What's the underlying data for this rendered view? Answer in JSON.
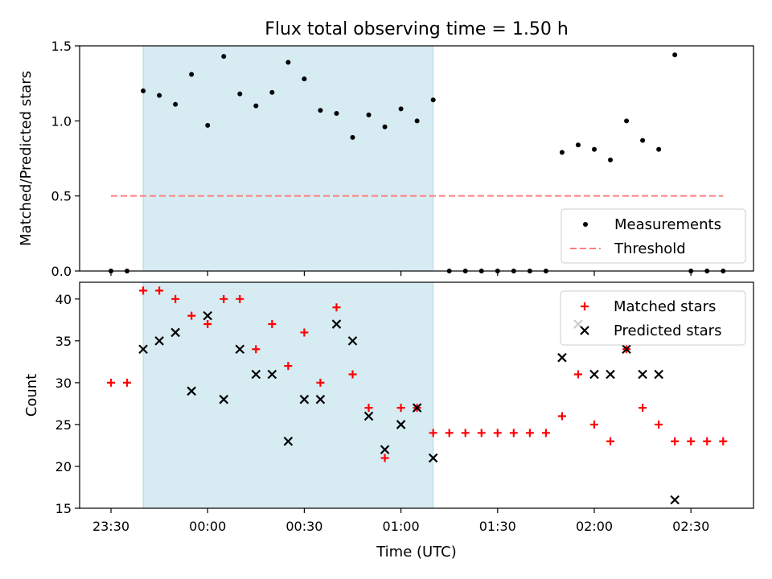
{
  "chart_data": [
    {
      "type": "scatter",
      "title": "Flux total observing time = 1.50 h",
      "xlabel": "",
      "ylabel": "Matched/Predicted stars",
      "ylim": [
        0,
        1.5
      ],
      "yticks": [
        "0.0",
        "0.5",
        "1.0",
        "1.5"
      ],
      "shaded_region": {
        "x_start": "23:40",
        "x_end": "01:10",
        "color": "#add8e6"
      },
      "legend": {
        "position": "lower-right",
        "entries": [
          "Measurements",
          "Threshold"
        ]
      },
      "series": [
        {
          "name": "Measurements",
          "marker": "dot",
          "color": "#000000",
          "x": [
            "23:30",
            "23:35",
            "23:40",
            "23:45",
            "23:50",
            "23:55",
            "00:00",
            "00:05",
            "00:10",
            "00:15",
            "00:20",
            "00:25",
            "00:30",
            "00:35",
            "00:40",
            "00:45",
            "00:50",
            "00:55",
            "01:00",
            "01:05",
            "01:10",
            "01:15",
            "01:20",
            "01:25",
            "01:30",
            "01:35",
            "01:40",
            "01:45",
            "01:50",
            "01:55",
            "02:00",
            "02:05",
            "02:10",
            "02:15",
            "02:20",
            "02:25",
            "02:30",
            "02:35",
            "02:40"
          ],
          "y": [
            0,
            0,
            1.2,
            1.17,
            1.11,
            1.31,
            0.97,
            1.43,
            1.18,
            1.1,
            1.19,
            1.39,
            1.28,
            1.07,
            1.05,
            0.89,
            1.04,
            0.96,
            1.08,
            1.0,
            1.14,
            0,
            0,
            0,
            0,
            0,
            0,
            0,
            0.79,
            0.84,
            0.81,
            0.74,
            1.0,
            0.87,
            0.81,
            1.44,
            0,
            0,
            0
          ]
        },
        {
          "name": "Threshold",
          "type": "line",
          "style": "dashed",
          "color": "#ff7f7f",
          "x": [
            "23:30",
            "02:40"
          ],
          "y": [
            0.5,
            0.5
          ]
        }
      ]
    },
    {
      "type": "scatter",
      "xlabel": "Time (UTC)",
      "ylabel": "Count",
      "ylim": [
        15,
        42
      ],
      "yticks": [
        "15",
        "20",
        "25",
        "30",
        "35",
        "40"
      ],
      "xticks": [
        "23:30",
        "00:00",
        "00:30",
        "01:00",
        "01:30",
        "02:00",
        "02:30"
      ],
      "shaded_region": {
        "x_start": "23:40",
        "x_end": "01:10",
        "color": "#add8e6"
      },
      "legend": {
        "position": "top-right",
        "entries": [
          "Matched stars",
          "Predicted stars"
        ]
      },
      "series": [
        {
          "name": "Matched stars",
          "marker": "plus",
          "color": "#ff0000",
          "x": [
            "23:30",
            "23:35",
            "23:40",
            "23:45",
            "23:50",
            "23:55",
            "00:00",
            "00:05",
            "00:10",
            "00:15",
            "00:20",
            "00:25",
            "00:30",
            "00:35",
            "00:40",
            "00:45",
            "00:50",
            "00:55",
            "01:00",
            "01:05",
            "01:10",
            "01:15",
            "01:20",
            "01:25",
            "01:30",
            "01:35",
            "01:40",
            "01:45",
            "01:50",
            "01:55",
            "02:00",
            "02:05",
            "02:10",
            "02:15",
            "02:20",
            "02:25",
            "02:30",
            "02:35",
            "02:40"
          ],
          "y": [
            30,
            30,
            41,
            41,
            40,
            38,
            37,
            40,
            40,
            34,
            37,
            32,
            36,
            30,
            39,
            31,
            27,
            21,
            27,
            27,
            24,
            24,
            24,
            24,
            24,
            24,
            24,
            24,
            26,
            31,
            25,
            23,
            34,
            27,
            25,
            23,
            23,
            23,
            23
          ]
        },
        {
          "name": "Predicted stars",
          "marker": "x",
          "color": "#000000",
          "x": [
            "23:40",
            "23:45",
            "23:50",
            "23:55",
            "00:00",
            "00:05",
            "00:10",
            "00:15",
            "00:20",
            "00:25",
            "00:30",
            "00:35",
            "00:40",
            "00:45",
            "00:50",
            "00:55",
            "01:00",
            "01:05",
            "01:10",
            "01:50",
            "01:55",
            "02:00",
            "02:05",
            "02:10",
            "02:15",
            "02:20",
            "02:25"
          ],
          "y": [
            34,
            35,
            36,
            29,
            38,
            28,
            34,
            31,
            31,
            23,
            28,
            28,
            37,
            35,
            26,
            22,
            25,
            27,
            21,
            33,
            37,
            31,
            31,
            34,
            31,
            31,
            16
          ]
        }
      ]
    }
  ]
}
